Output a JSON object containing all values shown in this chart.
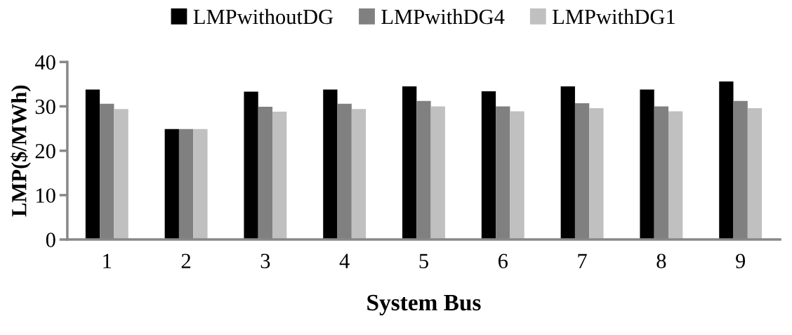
{
  "chart_data": {
    "type": "bar",
    "xlabel": "System Bus",
    "ylabel": "LMP($/MWh)",
    "categories": [
      "1",
      "2",
      "3",
      "4",
      "5",
      "6",
      "7",
      "8",
      "9"
    ],
    "series": [
      {
        "name": "LMPwithoutDG",
        "color": "#000000",
        "values": [
          33.8,
          24.9,
          33.3,
          33.8,
          34.5,
          33.4,
          34.5,
          33.8,
          35.6
        ]
      },
      {
        "name": "LMPwithDG4",
        "color": "#808080",
        "values": [
          30.6,
          24.9,
          29.9,
          30.6,
          31.2,
          30.0,
          30.7,
          30.0,
          31.2
        ]
      },
      {
        "name": "LMPwithDG1",
        "color": "#c0c0c0",
        "values": [
          29.4,
          24.9,
          28.8,
          29.4,
          30.0,
          28.9,
          29.6,
          28.9,
          29.6
        ]
      }
    ],
    "ylim": [
      0,
      40
    ],
    "yticks": [
      0,
      10,
      20,
      30,
      40
    ],
    "grid": false,
    "legend": "top"
  }
}
